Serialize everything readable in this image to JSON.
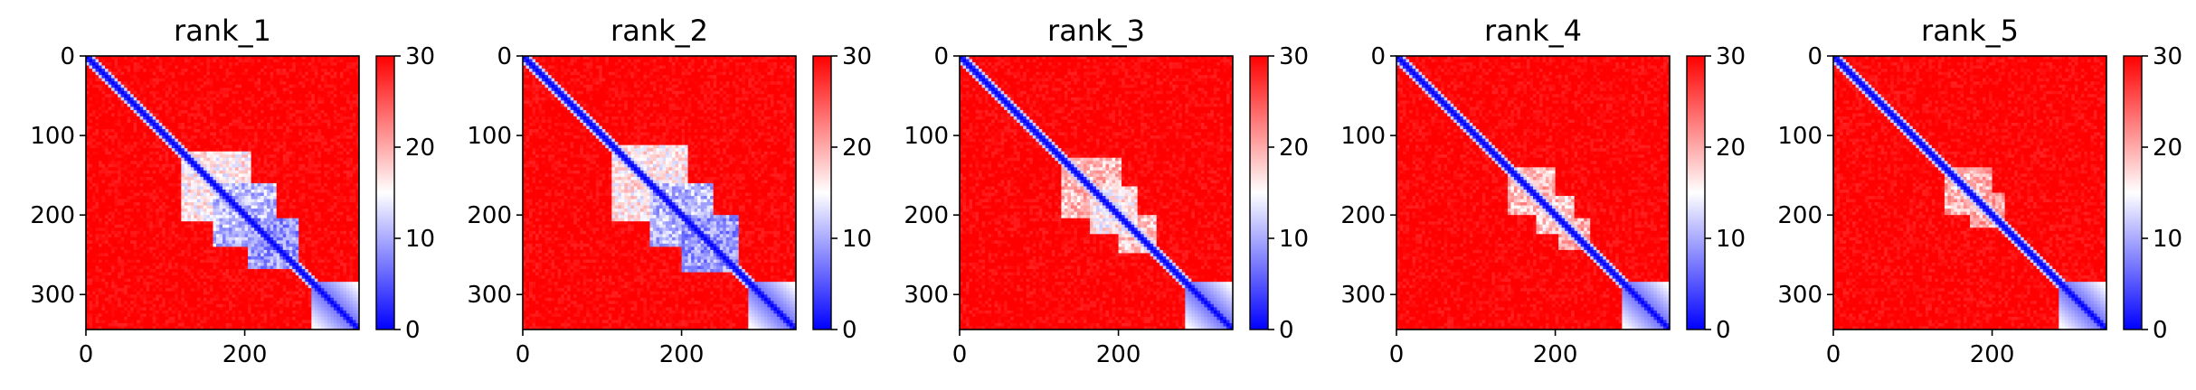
{
  "chart_data": [
    {
      "type": "heatmap",
      "title": "rank_1",
      "xlabel": "",
      "ylabel": "",
      "x_ticks": [
        0,
        200
      ],
      "y_ticks": [
        0,
        100,
        200,
        300
      ],
      "xlim": [
        0,
        344
      ],
      "ylim": [
        344,
        0
      ],
      "colorbar": {
        "min": 0,
        "max": 30,
        "ticks": [
          0,
          10,
          20,
          30
        ],
        "colormap": "bwr"
      },
      "blocks": [
        [
          165,
          45,
          12
        ],
        [
          200,
          40,
          7
        ],
        [
          236,
          34,
          5
        ]
      ],
      "grid": false
    },
    {
      "type": "heatmap",
      "title": "rank_2",
      "xlabel": "",
      "ylabel": "",
      "x_ticks": [
        0,
        200
      ],
      "y_ticks": [
        0,
        100,
        200,
        300
      ],
      "xlim": [
        0,
        344
      ],
      "ylim": [
        344,
        0
      ],
      "colorbar": {
        "min": 0,
        "max": 30,
        "ticks": [
          0,
          10,
          20,
          30
        ],
        "colormap": "bwr"
      },
      "blocks": [
        [
          160,
          48,
          12
        ],
        [
          200,
          42,
          7
        ],
        [
          235,
          36,
          5
        ]
      ],
      "grid": false
    },
    {
      "type": "heatmap",
      "title": "rank_3",
      "xlabel": "",
      "ylabel": "",
      "x_ticks": [
        0,
        200
      ],
      "y_ticks": [
        0,
        100,
        200,
        300
      ],
      "xlim": [
        0,
        344
      ],
      "ylim": [
        344,
        0
      ],
      "colorbar": {
        "min": 0,
        "max": 30,
        "ticks": [
          0,
          10,
          20,
          30
        ],
        "colormap": "bwr"
      },
      "blocks": [
        [
          165,
          38,
          15
        ],
        [
          195,
          30,
          12
        ],
        [
          225,
          25,
          14
        ]
      ],
      "grid": false
    },
    {
      "type": "heatmap",
      "title": "rank_4",
      "xlabel": "",
      "ylabel": "",
      "x_ticks": [
        0,
        200
      ],
      "y_ticks": [
        0,
        100,
        200,
        300
      ],
      "xlim": [
        0,
        344
      ],
      "ylim": [
        344,
        0
      ],
      "colorbar": {
        "min": 0,
        "max": 30,
        "ticks": [
          0,
          10,
          20,
          30
        ],
        "colormap": "bwr"
      },
      "blocks": [
        [
          170,
          30,
          15
        ],
        [
          200,
          25,
          14
        ],
        [
          225,
          20,
          16
        ]
      ],
      "grid": false
    },
    {
      "type": "heatmap",
      "title": "rank_5",
      "xlabel": "",
      "ylabel": "",
      "x_ticks": [
        0,
        200
      ],
      "y_ticks": [
        0,
        100,
        200,
        300
      ],
      "xlim": [
        0,
        344
      ],
      "ylim": [
        344,
        0
      ],
      "colorbar": {
        "min": 0,
        "max": 30,
        "ticks": [
          0,
          10,
          20,
          30
        ],
        "colormap": "bwr"
      },
      "blocks": [
        [
          170,
          30,
          15
        ],
        [
          195,
          22,
          16
        ]
      ],
      "grid": false
    }
  ]
}
